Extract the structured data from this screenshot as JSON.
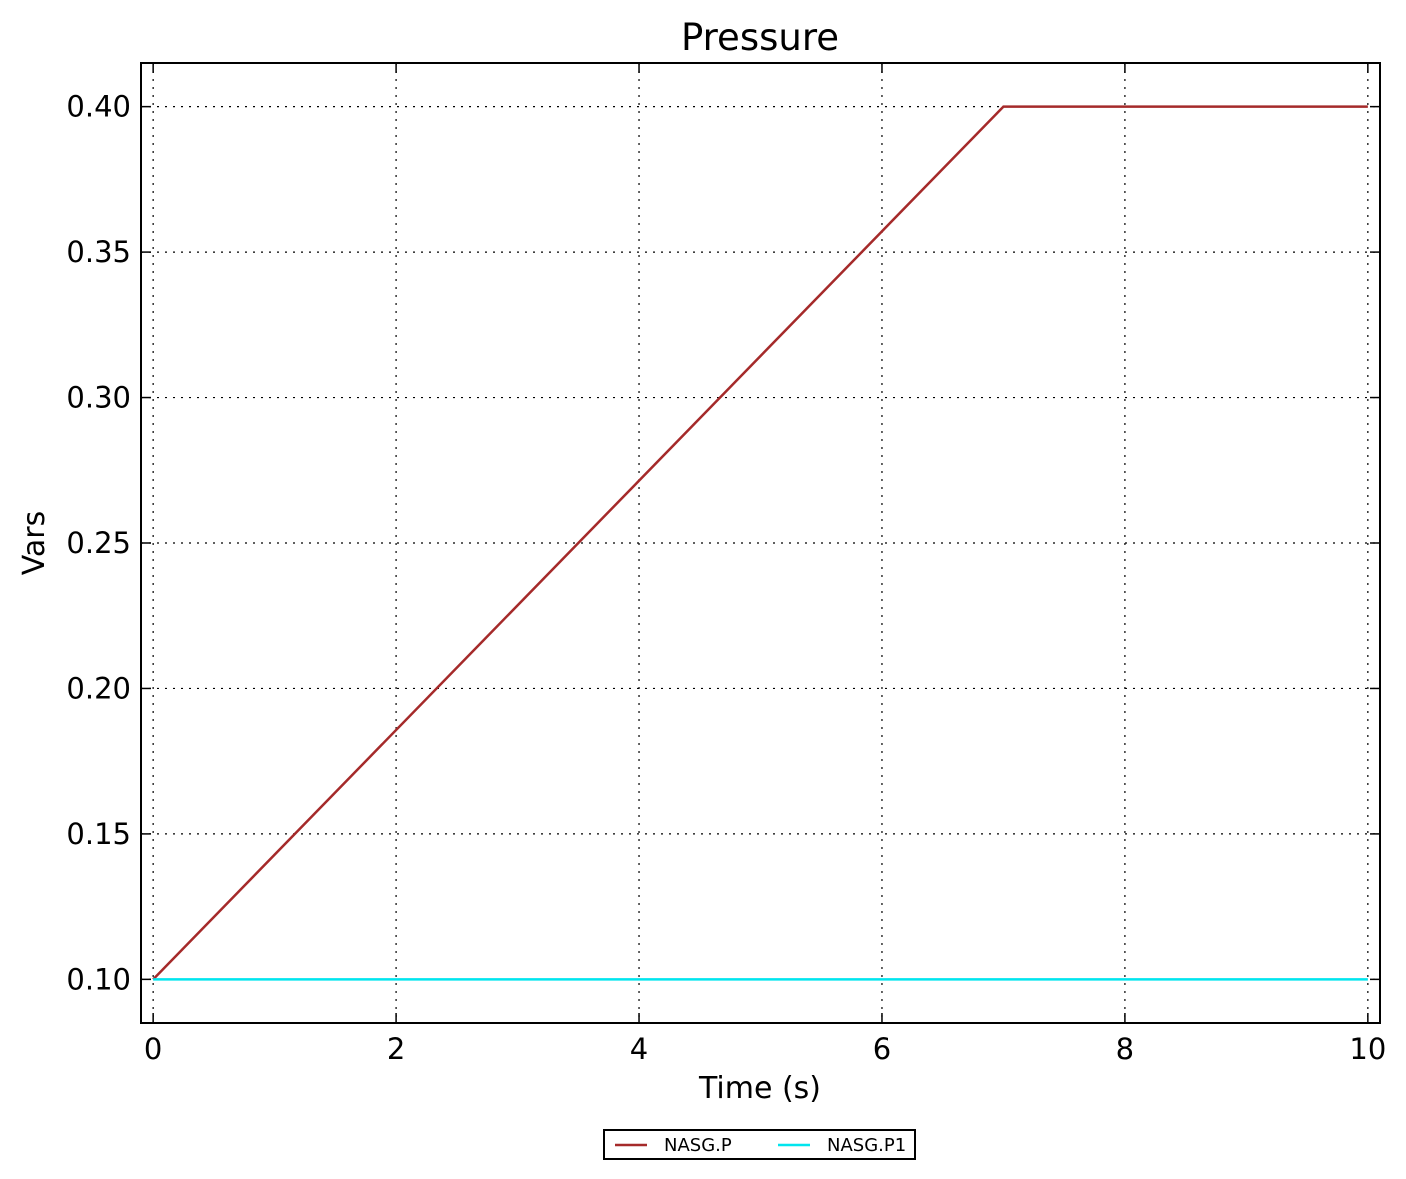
{
  "chart_data": {
    "type": "line",
    "title": "Pressure",
    "xlabel": "Time (s)",
    "ylabel": "Vars",
    "xlim": [
      -0.1,
      10.1
    ],
    "ylim": [
      0.085,
      0.415
    ],
    "xticks": [
      0,
      2,
      4,
      6,
      8,
      10
    ],
    "xtick_labels": [
      "0",
      "2",
      "4",
      "6",
      "8",
      "10"
    ],
    "yticks": [
      0.1,
      0.15,
      0.2,
      0.25,
      0.3,
      0.35,
      0.4
    ],
    "ytick_labels": [
      "0.10",
      "0.15",
      "0.20",
      "0.25",
      "0.30",
      "0.35",
      "0.40"
    ],
    "grid": true,
    "legend_position": "bottom-center",
    "series": [
      {
        "name": "NASG.P",
        "color": "#a52a2a",
        "x": [
          0,
          7,
          10
        ],
        "y": [
          0.1,
          0.4,
          0.4
        ]
      },
      {
        "name": "NASG.P1",
        "color": "#00e5ee",
        "x": [
          0,
          10
        ],
        "y": [
          0.1,
          0.1
        ]
      }
    ]
  }
}
